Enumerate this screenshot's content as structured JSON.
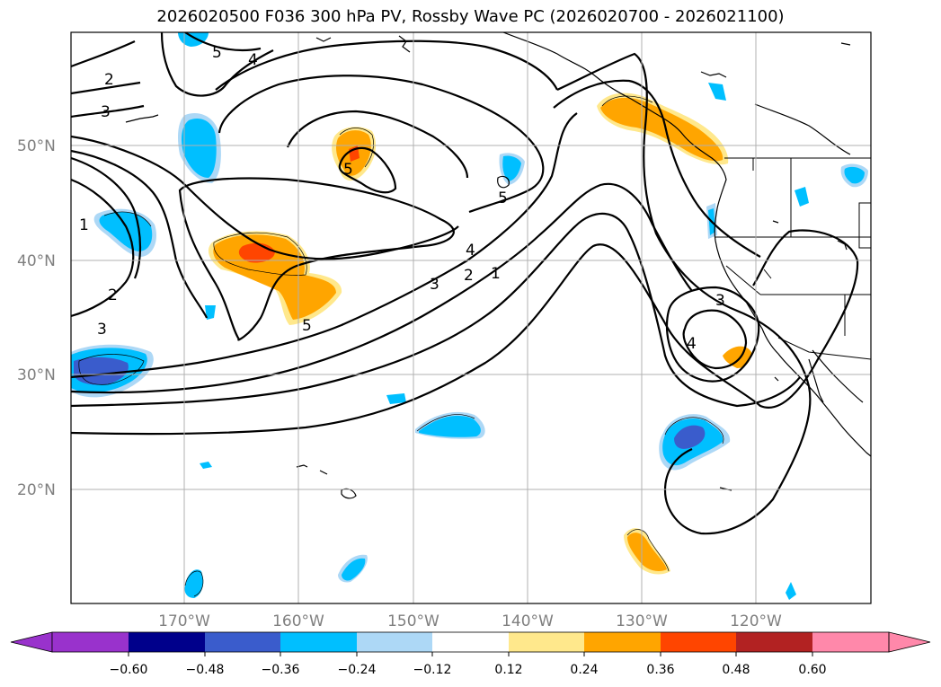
{
  "title": "2026020500 F036 300 hPa PV, Rossby Wave PC (2026020700 - 2026021100)",
  "lat_labels": [
    "50°N",
    "40°N",
    "30°N",
    "20°N"
  ],
  "lon_labels": [
    "170°W",
    "160°W",
    "150°W",
    "140°W",
    "130°W",
    "120°W"
  ],
  "contour_labels": [
    "5",
    "4",
    "2",
    "3",
    "5",
    "5",
    "1",
    "2",
    "3",
    "4",
    "3",
    "2",
    "1",
    "5",
    "3",
    "4"
  ],
  "colorbar": {
    "ticks": [
      "−0.60",
      "−0.48",
      "−0.36",
      "−0.24",
      "−0.12",
      "0.12",
      "0.24",
      "0.36",
      "0.48",
      "0.60"
    ],
    "colors": [
      "#9932cc",
      "#00008b",
      "#3a5ccc",
      "#00bfff",
      "#add8f6",
      "#ffffff",
      "#ffe88c",
      "#ffa500",
      "#ff4500",
      "#b22222",
      "#ff88aa",
      "#ff88aa"
    ]
  },
  "colors": {
    "neg_strong": "#3a5ccc",
    "neg": "#00bfff",
    "neg_light": "#add8f6",
    "pos_light": "#ffe88c",
    "pos": "#ffa500",
    "pos_strong": "#ff4500"
  }
}
